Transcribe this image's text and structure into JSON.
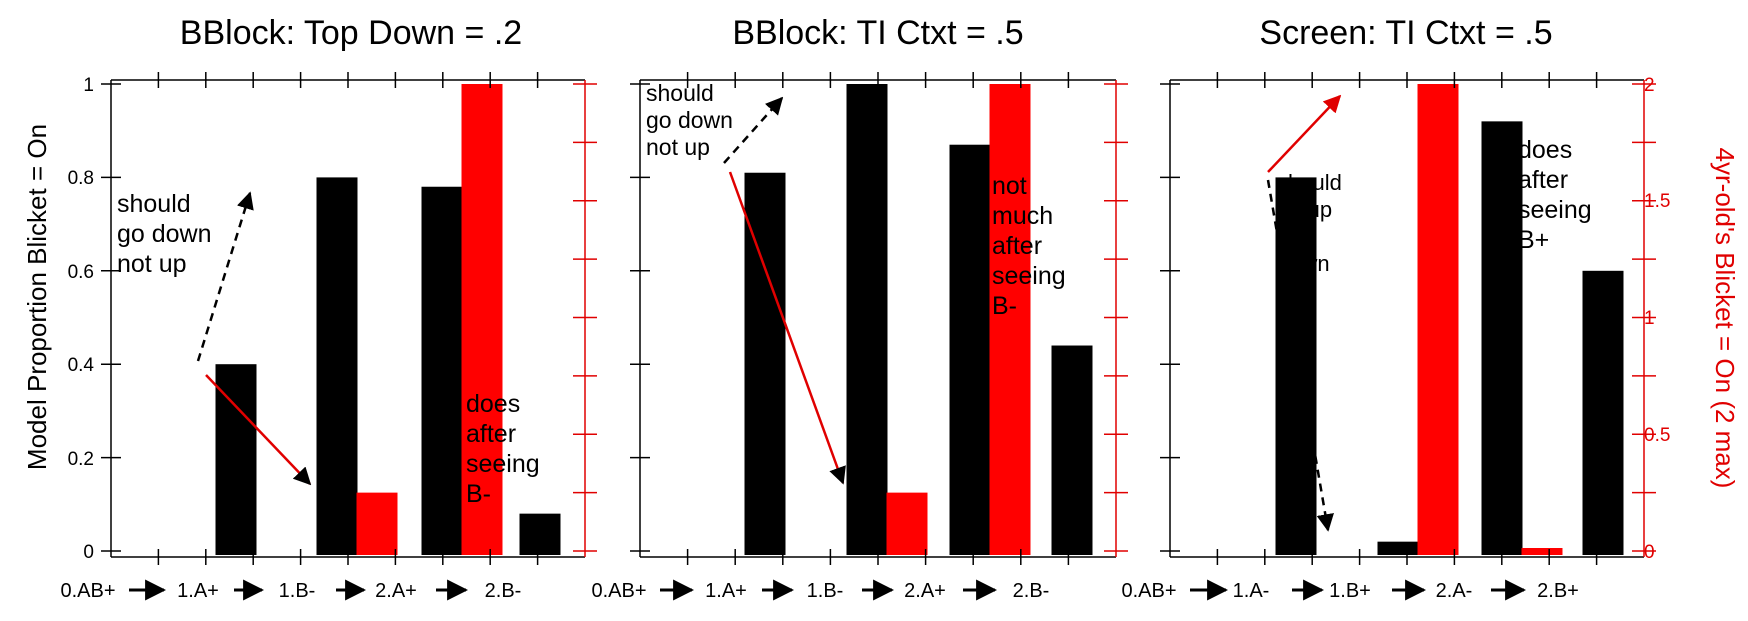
{
  "chart_data": [
    {
      "type": "bar",
      "title": "BBlock: Top Down = .2",
      "categories": [
        "0.AB+",
        "1.A+",
        "1.B-",
        "2.A+",
        "2.B-"
      ],
      "series": [
        {
          "name": "",
          "axis": "left",
          "color": "#000000",
          "values": [
            null,
            0.4,
            0.8,
            0.78,
            0.08
          ]
        },
        {
          "name": "",
          "axis": "right",
          "color": "#ff0000",
          "values": [
            null,
            null,
            0.25,
            2.0,
            null
          ]
        }
      ],
      "ylabel": "Model Proportion Blicket = On",
      "ylim": [
        0,
        1
      ],
      "y_ticks": [
        "0",
        "0.2",
        "0.4",
        "0.6",
        "0.8",
        "1"
      ],
      "y2label": "",
      "y2lim": [
        0,
        2
      ],
      "y2_ticks": [],
      "annotations": [
        {
          "lines": [
            "should",
            "go down",
            "not up"
          ]
        },
        {
          "lines": [
            "does",
            "after",
            "seeing",
            "B-"
          ]
        }
      ]
    },
    {
      "type": "bar",
      "title": "BBlock: TI Ctxt = .5",
      "categories": [
        "0.AB+",
        "1.A+",
        "1.B-",
        "2.A+",
        "2.B-"
      ],
      "series": [
        {
          "name": "",
          "axis": "left",
          "color": "#000000",
          "values": [
            null,
            0.81,
            1.0,
            0.87,
            0.44
          ]
        },
        {
          "name": "",
          "axis": "right",
          "color": "#ff0000",
          "values": [
            null,
            null,
            0.25,
            2.0,
            null
          ]
        }
      ],
      "ylabel": "",
      "ylim": [
        0,
        1
      ],
      "y_ticks": [],
      "y2label": "",
      "y2lim": [
        0,
        2
      ],
      "y2_ticks": [],
      "annotations": [
        {
          "lines": [
            "should",
            "go down",
            "not up"
          ]
        },
        {
          "lines": [
            "not",
            "much",
            "after",
            "seeing",
            "B-"
          ]
        }
      ]
    },
    {
      "type": "bar",
      "title": "Screen: TI Ctxt = .5",
      "categories": [
        "0.AB+",
        "1.A-",
        "1.B+",
        "2.A-",
        "2.B+"
      ],
      "series": [
        {
          "name": "",
          "axis": "left",
          "color": "#000000",
          "values": [
            null,
            0.8,
            0.02,
            0.92,
            0.6
          ]
        },
        {
          "name": "",
          "axis": "right",
          "color": "#ff0000",
          "values": [
            null,
            null,
            2.0,
            0.0,
            null
          ]
        }
      ],
      "ylabel": "",
      "ylim": [
        0,
        1
      ],
      "y_ticks": [],
      "y2label": "4yr-old's Blicket = On (2 max)",
      "y2lim": [
        0,
        2
      ],
      "y2_ticks": [
        "0",
        "0.5",
        "1",
        "1.5",
        "2"
      ],
      "annotations": [
        {
          "lines": [
            "should",
            "go up",
            "not",
            "down"
          ]
        },
        {
          "lines": [
            "does",
            "after",
            "seeing",
            "B+"
          ]
        }
      ]
    }
  ]
}
